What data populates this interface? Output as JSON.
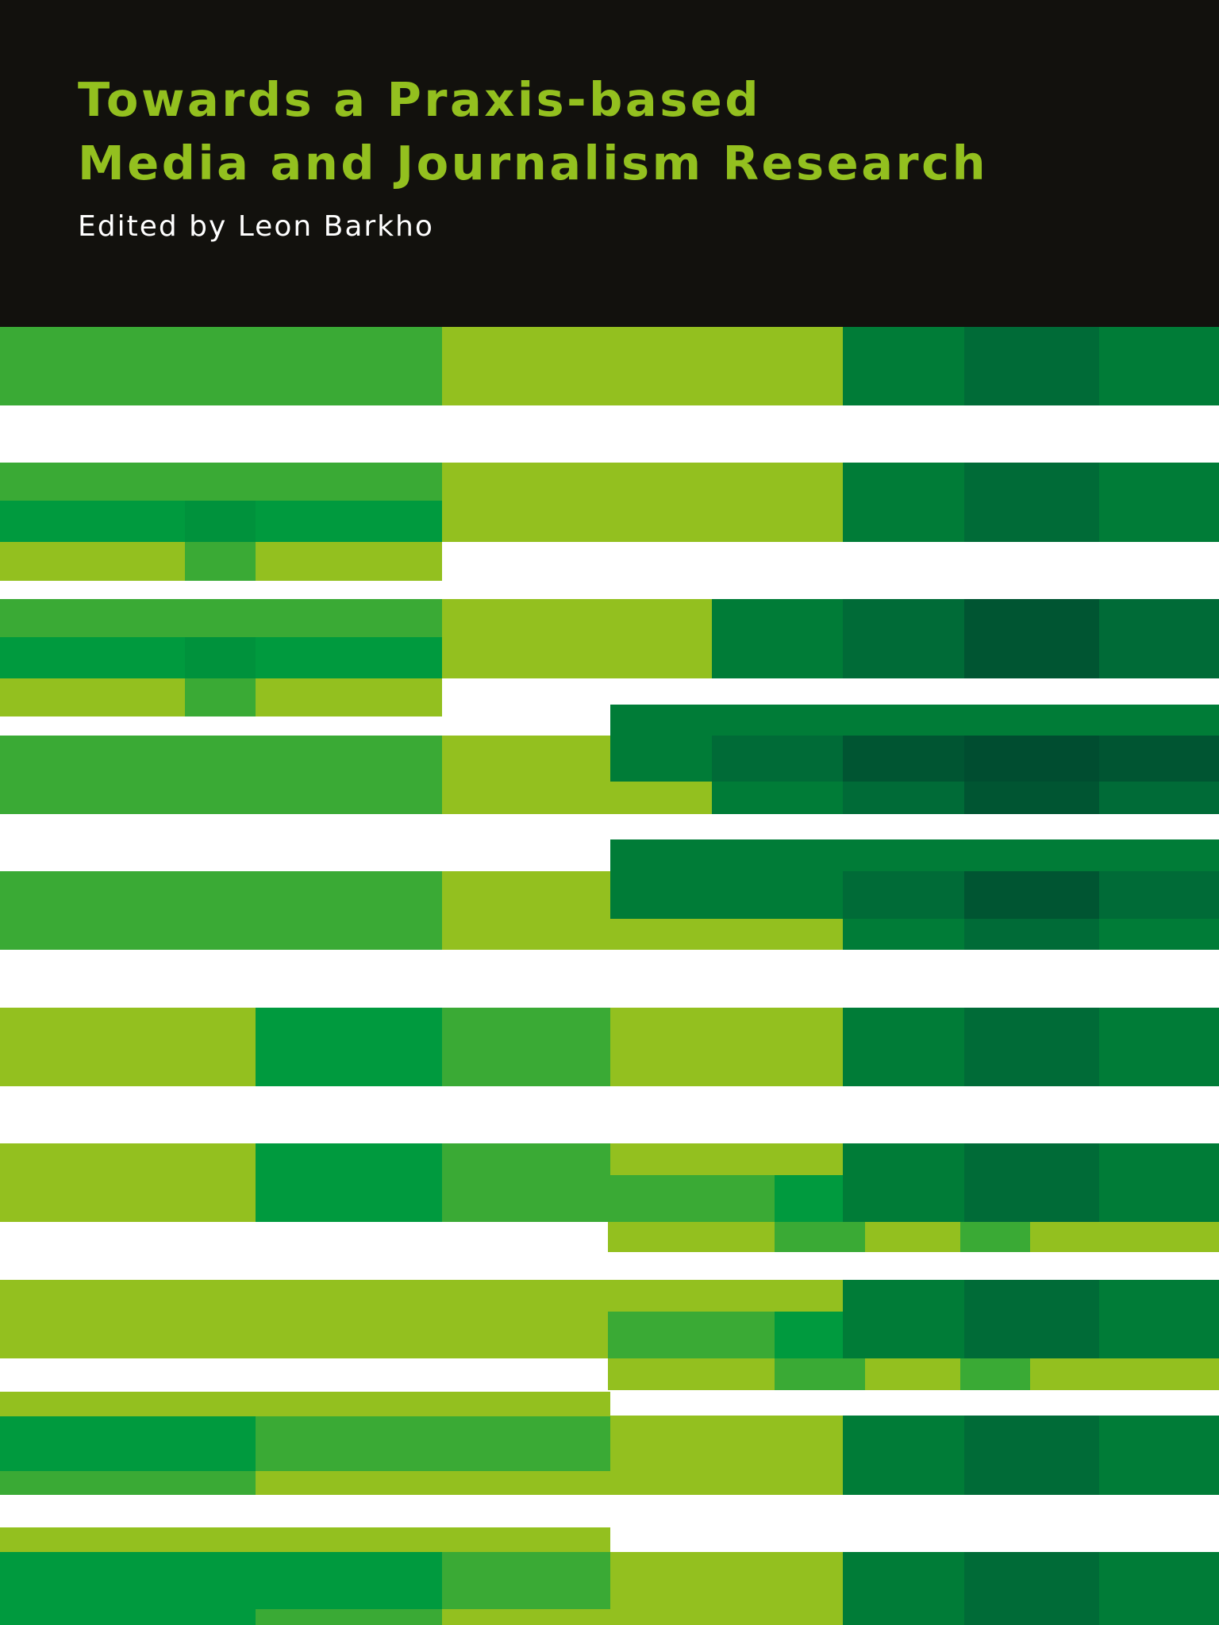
{
  "cover": {
    "title_line_1": "Towards a Praxis-based",
    "title_line_2": "Media and Journalism Research",
    "editor_line": "Edited by Leon Barkho"
  },
  "colors": {
    "header_background": "#12110d",
    "title_green": "#93c01f",
    "editor_text": "#ffffff",
    "lime": "#93c01f",
    "green_medium": "#3aaa35",
    "green_bright": "#009a3e",
    "green_deep": "#007c37",
    "green_dark": "#006b37",
    "green_darkest": "#005532",
    "background": "#ffffff"
  },
  "pattern_name": "green-stripe-pattern"
}
